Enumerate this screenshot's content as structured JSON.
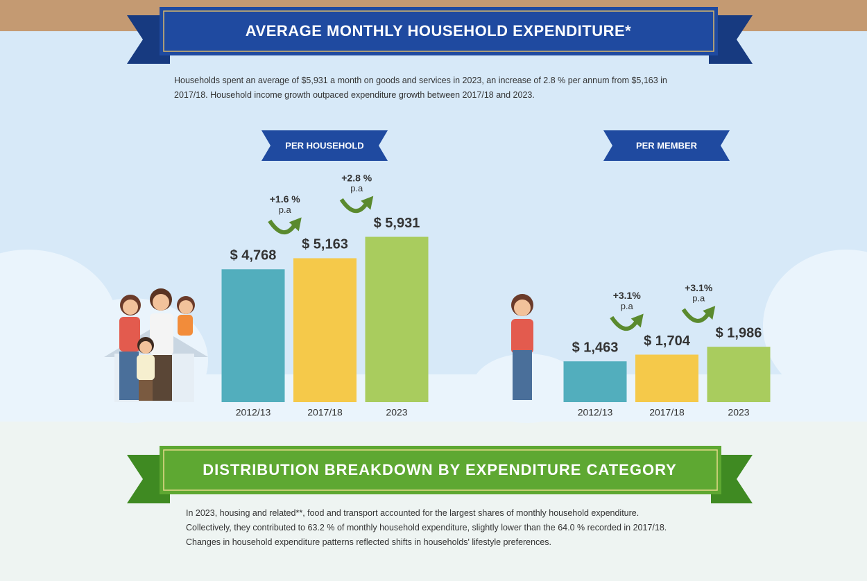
{
  "header": {
    "title": "AVERAGE MONTHLY HOUSEHOLD EXPENDITURE*",
    "text": "Households spent an average of $5,931 a month on goods and services in 2023, an increase of 2.8 % per annum from $5,163 in 2017/18. Household income growth outpaced expenditure growth between 2017/18 and 2023."
  },
  "chart_data": [
    {
      "type": "bar",
      "title": "PER HOUSEHOLD",
      "categories": [
        "2012/13",
        "2017/18",
        "2023"
      ],
      "values": [
        4768,
        5163,
        5931
      ],
      "value_labels": [
        "$ 4,768",
        "$ 5,163",
        "$ 5,931"
      ],
      "colors": [
        "#52aebd",
        "#f5c94a",
        "#a9cc5e"
      ],
      "annotations": [
        {
          "label": "+1.6 %",
          "unit": "p.a"
        },
        {
          "label": "+2.8 %",
          "unit": "p.a"
        }
      ]
    },
    {
      "type": "bar",
      "title": "PER MEMBER",
      "categories": [
        "2012/13",
        "2017/18",
        "2023"
      ],
      "values": [
        1463,
        1704,
        1986
      ],
      "value_labels": [
        "$ 1,463",
        "$ 1,704",
        "$ 1,986"
      ],
      "colors": [
        "#52aebd",
        "#f5c94a",
        "#a9cc5e"
      ],
      "annotations": [
        {
          "label": "+3.1%",
          "unit": "p.a"
        },
        {
          "label": "+3.1%",
          "unit": "p.a"
        }
      ]
    }
  ],
  "section": {
    "title": "DISTRIBUTION BREAKDOWN BY EXPENDITURE CATEGORY",
    "text": "In 2023, housing and related**, food and transport accounted for the largest shares of monthly household expenditure. Collectively, they contributed to 63.2 % of monthly household expenditure, slightly lower than the 64.0 % recorded in 2017/18. Changes in household expenditure patterns reflected shifts in households' lifestyle preferences."
  }
}
